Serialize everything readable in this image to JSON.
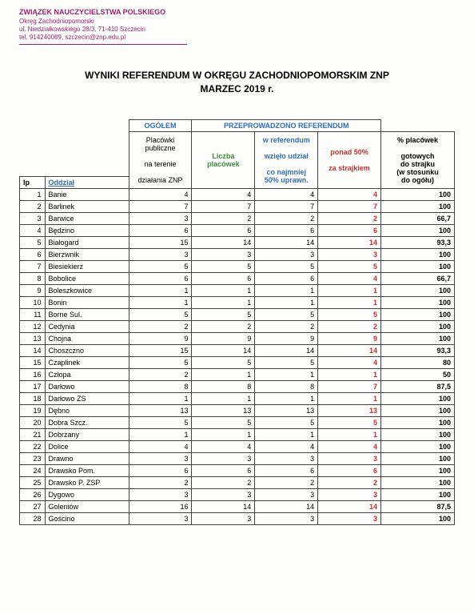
{
  "letterhead": {
    "org": "ZWIĄZEK NAUCZYCIELSTWA POLSKIEGO",
    "line2": "Okręg Zachodniopomorski",
    "line3": "ul. Niedziałkowskiego 28/3, 71-410 Szczecin",
    "line4": "tel. 914240089, szczecin@znp.edu.pl"
  },
  "title_line1": "WYNIKI REFERENDUM W OKRĘGU ZACHODNIOPOMORSKIM ZNP",
  "title_line2": "MARZEC 2019 r.",
  "headers": {
    "ogolem": "OGÓŁEM",
    "przeprowadzono": "PRZEPROWADZONO REFERENDUM",
    "placowki_publiczne": "Placówki publiczne",
    "na_terenie": "na terenie",
    "dzialania_znp": "działania ZNP",
    "liczba": "Liczba",
    "placowek": "placówek",
    "w_referendum": "w referendum",
    "wzielo_udzial": "wzięło udział",
    "co_najmniej": "co najmniej",
    "50_uprawn": "50% uprawn.",
    "ponad_50": "ponad 50%",
    "za_strajkiem": "za strajkiem",
    "pct_label1": "% placówek",
    "pct_label2": "gotowych",
    "pct_label3": "do strajku",
    "pct_label4": "(w stosunku",
    "pct_label5": "do ogółu)",
    "lp": "lp",
    "oddzial": "Oddział"
  },
  "rows": [
    {
      "lp": "1",
      "oddzial": "Banie",
      "c1": "4",
      "c2": "4",
      "c3": "4",
      "c4": "4",
      "pct": "100"
    },
    {
      "lp": "2",
      "oddzial": "Barlinek",
      "c1": "7",
      "c2": "7",
      "c3": "7",
      "c4": "7",
      "pct": "100"
    },
    {
      "lp": "3",
      "oddzial": "Barwice",
      "c1": "3",
      "c2": "2",
      "c3": "2",
      "c4": "2",
      "pct": "66,7"
    },
    {
      "lp": "4",
      "oddzial": "Będzino",
      "c1": "6",
      "c2": "6",
      "c3": "6",
      "c4": "6",
      "pct": "100"
    },
    {
      "lp": "5",
      "oddzial": "Białogard",
      "c1": "15",
      "c2": "14",
      "c3": "14",
      "c4": "14",
      "pct": "93,3"
    },
    {
      "lp": "6",
      "oddzial": "Bierzwnik",
      "c1": "3",
      "c2": "3",
      "c3": "3",
      "c4": "3",
      "pct": "100"
    },
    {
      "lp": "7",
      "oddzial": "Biesiekierz",
      "c1": "5",
      "c2": "5",
      "c3": "5",
      "c4": "5",
      "pct": "100"
    },
    {
      "lp": "8",
      "oddzial": "Bobolice",
      "c1": "6",
      "c2": "6",
      "c3": "6",
      "c4": "4",
      "pct": "66,7"
    },
    {
      "lp": "9",
      "oddzial": "Boleszkowice",
      "c1": "1",
      "c2": "1",
      "c3": "1",
      "c4": "1",
      "pct": "100"
    },
    {
      "lp": "10",
      "oddzial": "Bonin",
      "c1": "1",
      "c2": "1",
      "c3": "1",
      "c4": "1",
      "pct": "100"
    },
    {
      "lp": "11",
      "oddzial": "Borne Sul.",
      "c1": "5",
      "c2": "5",
      "c3": "5",
      "c4": "5",
      "pct": "100"
    },
    {
      "lp": "12",
      "oddzial": "Cedynia",
      "c1": "2",
      "c2": "2",
      "c3": "2",
      "c4": "2",
      "pct": "100"
    },
    {
      "lp": "13",
      "oddzial": "Chojna",
      "c1": "9",
      "c2": "9",
      "c3": "9",
      "c4": "9",
      "pct": "100"
    },
    {
      "lp": "14",
      "oddzial": "Choszczno",
      "c1": "15",
      "c2": "14",
      "c3": "14",
      "c4": "14",
      "pct": "93,3"
    },
    {
      "lp": "15",
      "oddzial": "Czaplinek",
      "c1": "5",
      "c2": "5",
      "c3": "5",
      "c4": "4",
      "pct": "80"
    },
    {
      "lp": "16",
      "oddzial": "Człopa",
      "c1": "2",
      "c2": "1",
      "c3": "1",
      "c4": "1",
      "pct": "50"
    },
    {
      "lp": "17",
      "oddzial": "Darłowo",
      "c1": "8",
      "c2": "8",
      "c3": "8",
      "c4": "7",
      "pct": "87,5"
    },
    {
      "lp": "18",
      "oddzial": "Darłowo ZS",
      "c1": "1",
      "c2": "1",
      "c3": "1",
      "c4": "1",
      "pct": "100"
    },
    {
      "lp": "19",
      "oddzial": "Dębno",
      "c1": "13",
      "c2": "13",
      "c3": "13",
      "c4": "13",
      "pct": "100"
    },
    {
      "lp": "20",
      "oddzial": "Dobra Szcz.",
      "c1": "5",
      "c2": "5",
      "c3": "5",
      "c4": "5",
      "pct": "100"
    },
    {
      "lp": "21",
      "oddzial": "Dobrzany",
      "c1": "1",
      "c2": "1",
      "c3": "1",
      "c4": "1",
      "pct": "100"
    },
    {
      "lp": "22",
      "oddzial": "Dolice",
      "c1": "4",
      "c2": "4",
      "c3": "4",
      "c4": "4",
      "pct": "100"
    },
    {
      "lp": "23",
      "oddzial": "Drawno",
      "c1": "3",
      "c2": "3",
      "c3": "3",
      "c4": "3",
      "pct": "100"
    },
    {
      "lp": "24",
      "oddzial": "Drawsko Pom.",
      "c1": "6",
      "c2": "6",
      "c3": "6",
      "c4": "6",
      "pct": "100"
    },
    {
      "lp": "25",
      "oddzial": "Drawsko P. ZSP",
      "c1": "2",
      "c2": "2",
      "c3": "2",
      "c4": "2",
      "pct": "100"
    },
    {
      "lp": "26",
      "oddzial": "Dygowo",
      "c1": "3",
      "c2": "3",
      "c3": "3",
      "c4": "3",
      "pct": "100"
    },
    {
      "lp": "27",
      "oddzial": "Goleniów",
      "c1": "16",
      "c2": "14",
      "c3": "14",
      "c4": "14",
      "pct": "87,5"
    },
    {
      "lp": "28",
      "oddzial": "Gościno",
      "c1": "3",
      "c2": "3",
      "c3": "3",
      "c4": "3",
      "pct": "100"
    }
  ],
  "colors": {
    "brand": "#9a1f6e",
    "blue": "#2f6cb5",
    "green": "#3a8c3a",
    "red": "#c2302f"
  }
}
